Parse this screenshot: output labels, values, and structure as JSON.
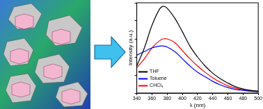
{
  "chart_data": {
    "type": "line",
    "x_label": "λ (nm)",
    "y_label": "Intensity (a.u.)",
    "x": [
      340,
      350,
      360,
      370,
      375,
      380,
      390,
      400,
      410,
      420,
      430,
      440,
      450,
      460,
      470,
      480,
      490,
      500
    ],
    "series": [
      {
        "name": "THF",
        "color": "#000000",
        "values": [
          3.0,
          5.0,
          7.5,
          9.3,
          9.6,
          9.4,
          8.3,
          6.8,
          5.2,
          4.0,
          3.0,
          2.2,
          1.6,
          1.1,
          0.7,
          0.45,
          0.3,
          0.2
        ]
      },
      {
        "name": "Toluene",
        "color": "#0000ff",
        "values": [
          4.2,
          4.6,
          5.0,
          5.2,
          5.2,
          5.1,
          4.6,
          3.8,
          3.0,
          2.3,
          1.8,
          1.3,
          0.9,
          0.6,
          0.4,
          0.3,
          0.2,
          0.15
        ]
      },
      {
        "name": "CHCl₃",
        "color": "#ff0000",
        "values": [
          2.8,
          3.8,
          5.0,
          5.8,
          6.0,
          6.0,
          5.6,
          4.7,
          3.8,
          3.0,
          2.3,
          1.7,
          1.2,
          0.8,
          0.55,
          0.35,
          0.25,
          0.2
        ]
      }
    ],
    "xlim": [
      340,
      500
    ],
    "xticks": [
      340,
      360,
      380,
      400,
      420,
      440,
      460,
      480,
      500
    ],
    "ylim": [
      0,
      10
    ],
    "yticks": [
      0,
      2,
      4,
      6,
      8,
      10
    ],
    "tick_labels": "x",
    "grid": false,
    "legend": "upper right"
  }
}
